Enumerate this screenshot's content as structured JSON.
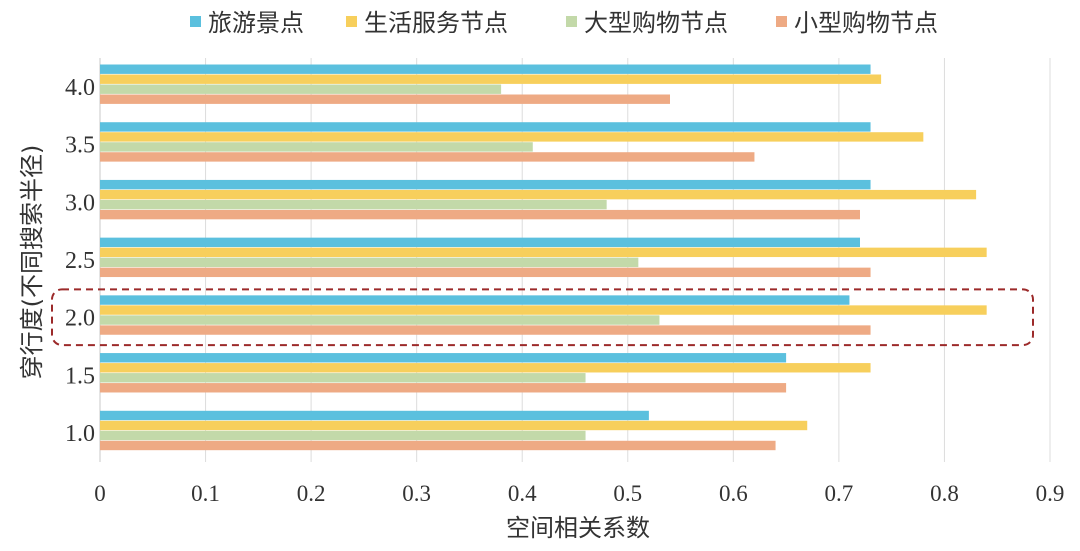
{
  "chart_data": {
    "type": "bar",
    "orientation": "horizontal",
    "categories": [
      "1.0",
      "1.5",
      "2.0",
      "2.5",
      "3.0",
      "3.5",
      "4.0"
    ],
    "series": [
      {
        "name": "旅游景点",
        "color": "#5bc0de",
        "values": [
          0.52,
          0.65,
          0.71,
          0.72,
          0.73,
          0.73,
          0.73
        ]
      },
      {
        "name": "生活服务节点",
        "color": "#f7cf5c",
        "values": [
          0.67,
          0.73,
          0.84,
          0.84,
          0.83,
          0.78,
          0.74
        ]
      },
      {
        "name": "大型购物节点",
        "color": "#c3d9a9",
        "values": [
          0.46,
          0.46,
          0.53,
          0.51,
          0.48,
          0.41,
          0.38
        ]
      },
      {
        "name": "小型购物节点",
        "color": "#eeaa84",
        "values": [
          0.64,
          0.65,
          0.73,
          0.73,
          0.72,
          0.62,
          0.54
        ]
      }
    ],
    "xlabel": "空间相关系数",
    "ylabel": "穿行度(不同搜索半径)",
    "xlim": [
      0,
      0.9
    ],
    "xticks": [
      "0",
      "0.1",
      "0.2",
      "0.3",
      "0.4",
      "0.5",
      "0.6",
      "0.7",
      "0.8",
      "0.9"
    ],
    "grid": "vertical",
    "legend_position": "top",
    "highlight": {
      "category": "2.0",
      "style": "dashed",
      "color": "#9c2a2a"
    }
  }
}
